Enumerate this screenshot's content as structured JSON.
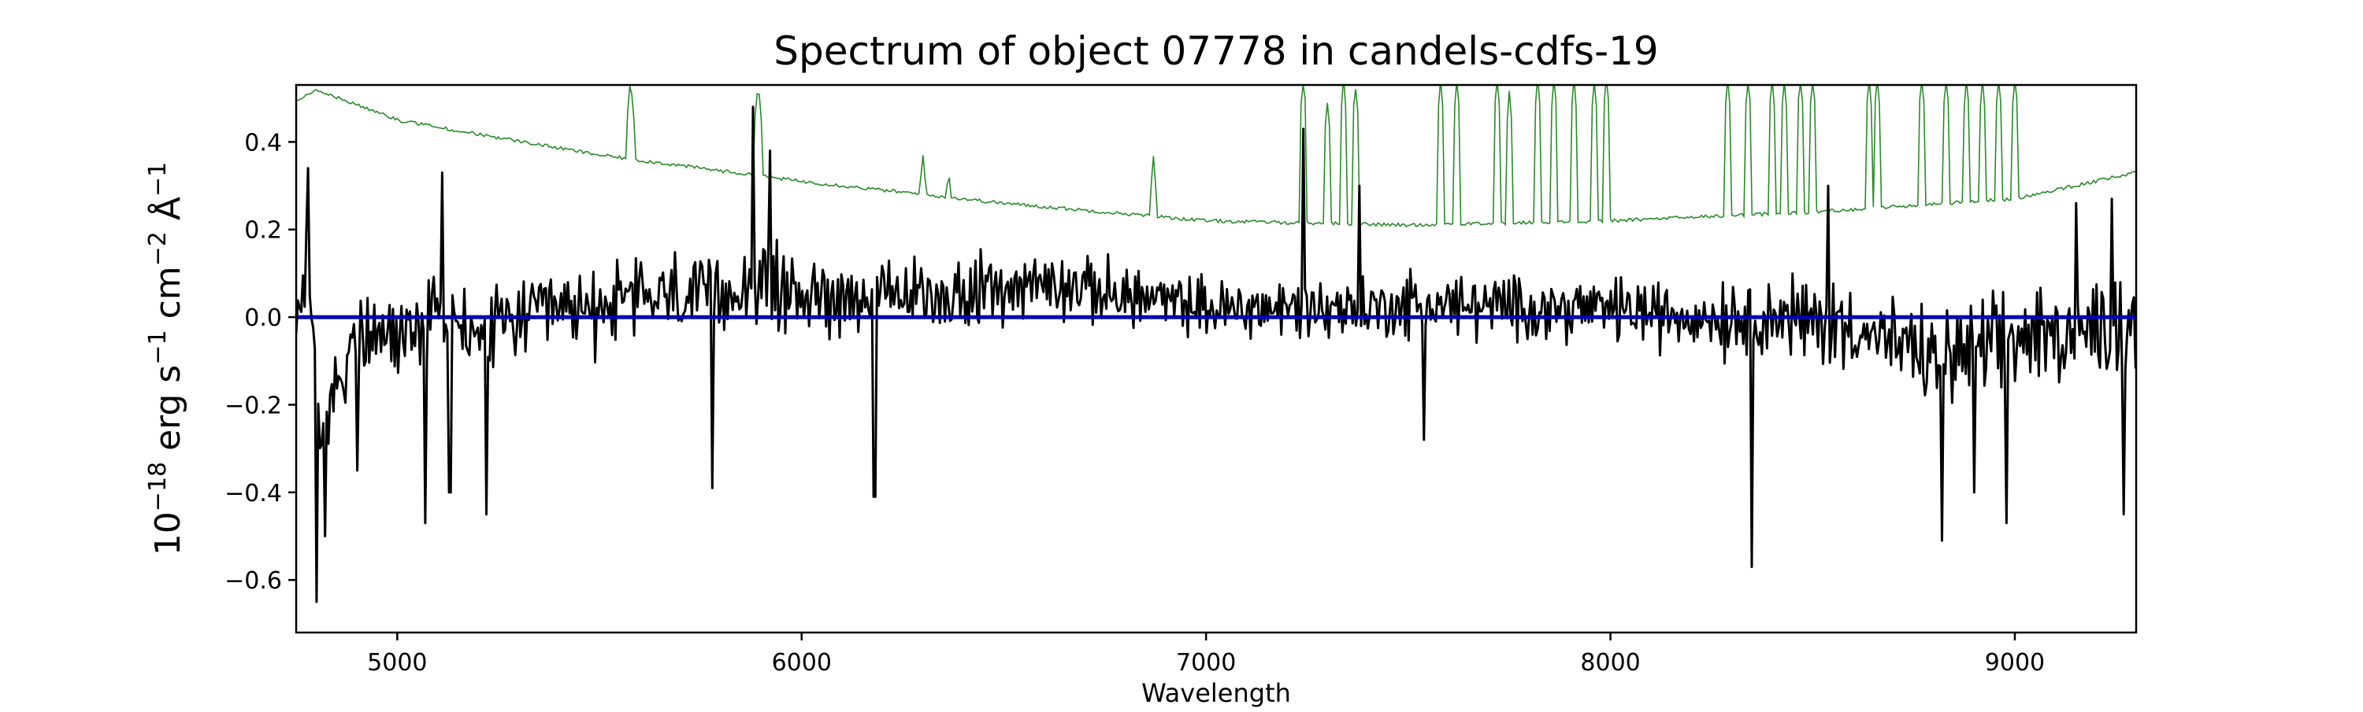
{
  "chart_data": {
    "type": "line",
    "title": "Spectrum of object 07778 in candels-cdfs-19",
    "xlabel": "Wavelength",
    "ylabel": {
      "base": "10",
      "base_exp": "−18",
      "unit1": " erg s",
      "unit1_exp": "−1",
      "unit2": " cm",
      "unit2_exp": "−2",
      "unit3": " Å",
      "unit3_exp": "−1"
    },
    "xlim": [
      4750,
      9300
    ],
    "ylim": [
      -0.72,
      0.53
    ],
    "x_ticks": [
      5000,
      6000,
      7000,
      8000,
      9000
    ],
    "x_tick_labels": [
      "5000",
      "6000",
      "7000",
      "8000",
      "9000"
    ],
    "y_ticks": [
      -0.6,
      -0.4,
      -0.2,
      0.0,
      0.2,
      0.4
    ],
    "y_tick_labels": [
      "−0.6",
      "−0.4",
      "−0.2",
      "0.0",
      "0.2",
      "0.4"
    ],
    "grid": false,
    "series": [
      {
        "role": "flux",
        "color": "#000000",
        "anchors": [
          [
            4750,
            0.0
          ],
          [
            4780,
            0.15
          ],
          [
            4810,
            -0.25
          ],
          [
            4900,
            -0.05
          ],
          [
            5000,
            -0.05
          ],
          [
            5100,
            0.02
          ],
          [
            5200,
            -0.05
          ],
          [
            5300,
            0.0
          ],
          [
            5500,
            0.02
          ],
          [
            5600,
            0.05
          ],
          [
            5800,
            0.05
          ],
          [
            5900,
            0.08
          ],
          [
            6000,
            0.05
          ],
          [
            6200,
            0.05
          ],
          [
            6400,
            0.05
          ],
          [
            6600,
            0.08
          ],
          [
            6800,
            0.05
          ],
          [
            7000,
            0.02
          ],
          [
            7200,
            0.02
          ],
          [
            7400,
            0.02
          ],
          [
            7600,
            0.03
          ],
          [
            7800,
            0.02
          ],
          [
            8000,
            0.02
          ],
          [
            8200,
            0.0
          ],
          [
            8400,
            0.0
          ],
          [
            8600,
            -0.02
          ],
          [
            8800,
            -0.1
          ],
          [
            9000,
            -0.05
          ],
          [
            9200,
            -0.03
          ],
          [
            9300,
            0.0
          ]
        ],
        "noise": [
          [
            4750,
            0.14
          ],
          [
            5300,
            0.14
          ],
          [
            6000,
            0.12
          ],
          [
            7000,
            0.09
          ],
          [
            7500,
            0.1
          ],
          [
            8000,
            0.1
          ],
          [
            8500,
            0.13
          ],
          [
            9000,
            0.15
          ],
          [
            9300,
            0.15
          ]
        ],
        "spikes": [
          [
            4780,
            0.34
          ],
          [
            4800,
            -0.65
          ],
          [
            4820,
            -0.5
          ],
          [
            4900,
            -0.35
          ],
          [
            5070,
            -0.47
          ],
          [
            5110,
            0.33
          ],
          [
            5130,
            -0.4
          ],
          [
            5220,
            -0.45
          ],
          [
            5780,
            -0.39
          ],
          [
            5880,
            0.48
          ],
          [
            5920,
            0.38
          ],
          [
            6180,
            -0.41
          ],
          [
            7240,
            0.43
          ],
          [
            7380,
            0.3
          ],
          [
            7540,
            -0.28
          ],
          [
            8350,
            -0.57
          ],
          [
            8540,
            0.3
          ],
          [
            8820,
            -0.51
          ],
          [
            8900,
            -0.4
          ],
          [
            8980,
            -0.47
          ],
          [
            9150,
            0.26
          ],
          [
            9240,
            0.27
          ],
          [
            9270,
            -0.45
          ]
        ]
      },
      {
        "role": "noise_spectrum",
        "color": "#2a8a2a",
        "continuum": [
          [
            4750,
            0.49
          ],
          [
            4800,
            0.52
          ],
          [
            5000,
            0.45
          ],
          [
            5500,
            0.37
          ],
          [
            6000,
            0.31
          ],
          [
            6500,
            0.26
          ],
          [
            7000,
            0.22
          ],
          [
            7500,
            0.21
          ],
          [
            8000,
            0.22
          ],
          [
            8500,
            0.24
          ],
          [
            9000,
            0.27
          ],
          [
            9300,
            0.33
          ]
        ],
        "sky_lines": [
          [
            5577,
            0.53
          ],
          [
            5892,
            0.53
          ],
          [
            6300,
            0.36
          ],
          [
            6363,
            0.33
          ],
          [
            6870,
            0.35
          ],
          [
            7240,
            0.53
          ],
          [
            7300,
            0.48
          ],
          [
            7340,
            0.53
          ],
          [
            7370,
            0.52
          ],
          [
            7580,
            0.53
          ],
          [
            7620,
            0.53
          ],
          [
            7720,
            0.53
          ],
          [
            7750,
            0.5
          ],
          [
            7820,
            0.53
          ],
          [
            7860,
            0.53
          ],
          [
            7910,
            0.53
          ],
          [
            7960,
            0.53
          ],
          [
            7990,
            0.53
          ],
          [
            8290,
            0.53
          ],
          [
            8340,
            0.53
          ],
          [
            8400,
            0.53
          ],
          [
            8430,
            0.53
          ],
          [
            8470,
            0.53
          ],
          [
            8500,
            0.53
          ],
          [
            8640,
            0.53
          ],
          [
            8660,
            0.53
          ],
          [
            8770,
            0.53
          ],
          [
            8830,
            0.53
          ],
          [
            8880,
            0.53
          ],
          [
            8920,
            0.53
          ],
          [
            8960,
            0.53
          ],
          [
            9000,
            0.53
          ]
        ]
      },
      {
        "role": "zero_level",
        "color": "#0000b4",
        "value": 0.0
      }
    ]
  }
}
